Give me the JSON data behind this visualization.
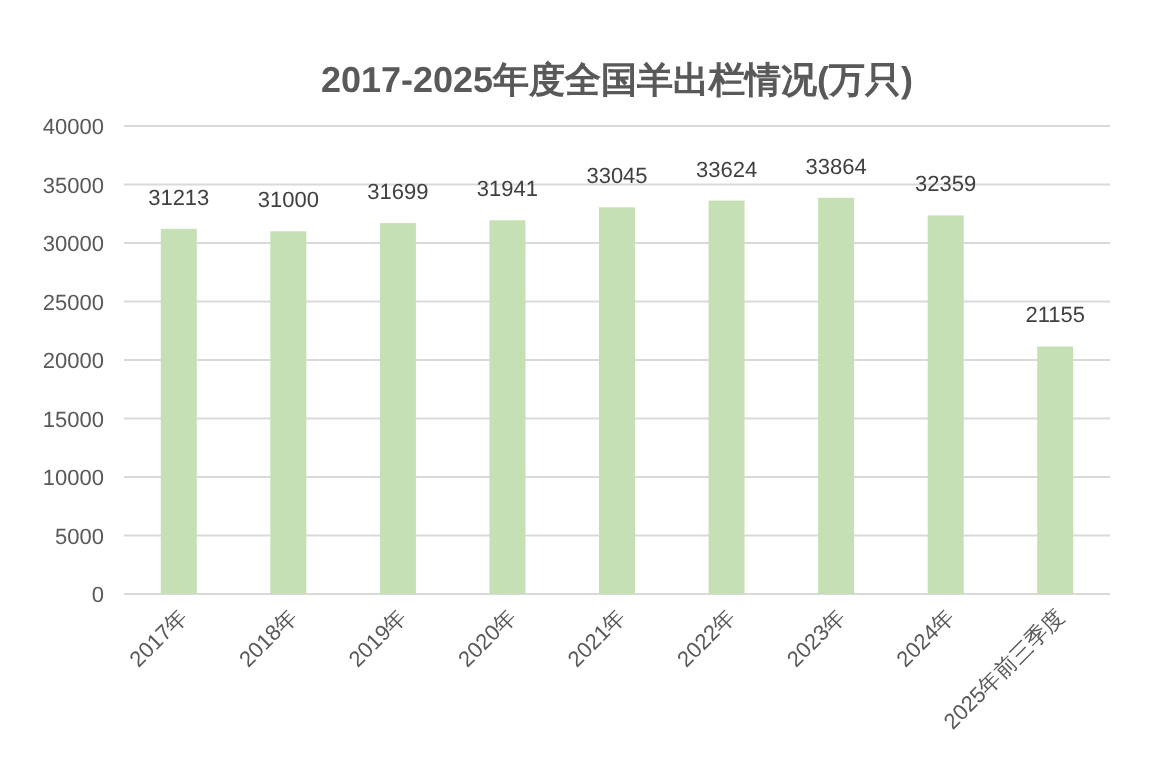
{
  "chart_data": {
    "type": "bar",
    "title": "2017-2025年度全国羊出栏情况(万只)",
    "categories": [
      "2017年",
      "2018年",
      "2019年",
      "2020年",
      "2021年",
      "2022年",
      "2023年",
      "2024年",
      "2025年前三季度"
    ],
    "values": [
      31213,
      31000,
      31699,
      31941,
      33045,
      33624,
      33864,
      32359,
      21155
    ],
    "color": "#c5e0b4",
    "ylim": [
      0,
      40000
    ],
    "yticks": [
      0,
      5000,
      10000,
      15000,
      20000,
      25000,
      30000,
      35000,
      40000
    ],
    "grid": "y",
    "data_labels": true
  }
}
